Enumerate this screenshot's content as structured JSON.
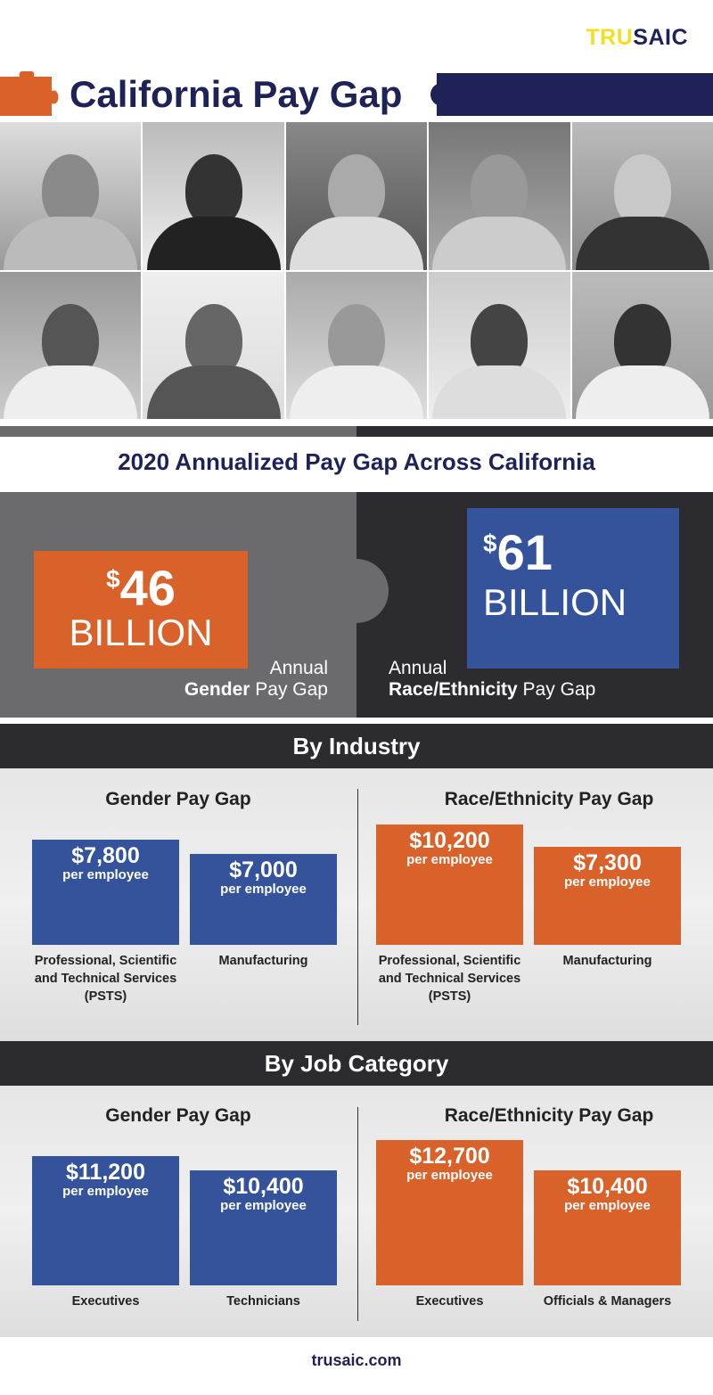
{
  "brand": {
    "logo_a": "TRU",
    "logo_b": "SAIC",
    "footer": "trusaic.com"
  },
  "header": {
    "title": "California Pay Gap"
  },
  "summary": {
    "heading": "2020 Annualized Pay Gap Across California",
    "gender": {
      "currency": "$",
      "amount": "46",
      "unit": "BILLION",
      "line1": "Annual",
      "bold": "Gender",
      "rest": " Pay Gap"
    },
    "race": {
      "currency": "$",
      "amount": "61",
      "unit": "BILLION",
      "line1": "Annual",
      "bold": "Race/Ethnicity",
      "rest": " Pay Gap"
    }
  },
  "industry": {
    "heading": "By Industry",
    "gender_title": "Gender Pay Gap",
    "race_title": "Race/Ethnicity Pay Gap",
    "gender": [
      {
        "value": "$7,800",
        "per": "per employee",
        "label": "Professional, Scientific and Technical Services (PSTS)"
      },
      {
        "value": "$7,000",
        "per": "per employee",
        "label": "Manufacturing"
      }
    ],
    "race": [
      {
        "value": "$10,200",
        "per": "per employee",
        "label": "Professional, Scientific and Technical Services (PSTS)"
      },
      {
        "value": "$7,300",
        "per": "per employee",
        "label": "Manufacturing"
      }
    ]
  },
  "job": {
    "heading": "By Job Category",
    "gender_title": "Gender Pay Gap",
    "race_title": "Race/Ethnicity Pay Gap",
    "gender": [
      {
        "value": "$11,200",
        "per": "per employee",
        "label": "Executives"
      },
      {
        "value": "$10,400",
        "per": "per employee",
        "label": "Technicians"
      }
    ],
    "race": [
      {
        "value": "$12,700",
        "per": "per employee",
        "label": "Executives"
      },
      {
        "value": "$10,400",
        "per": "per employee",
        "label": "Officials & Managers"
      }
    ]
  },
  "colors": {
    "navy": "#1e2256",
    "orange": "#d9622b",
    "blue": "#34539b",
    "yellow": "#f2df1f"
  }
}
